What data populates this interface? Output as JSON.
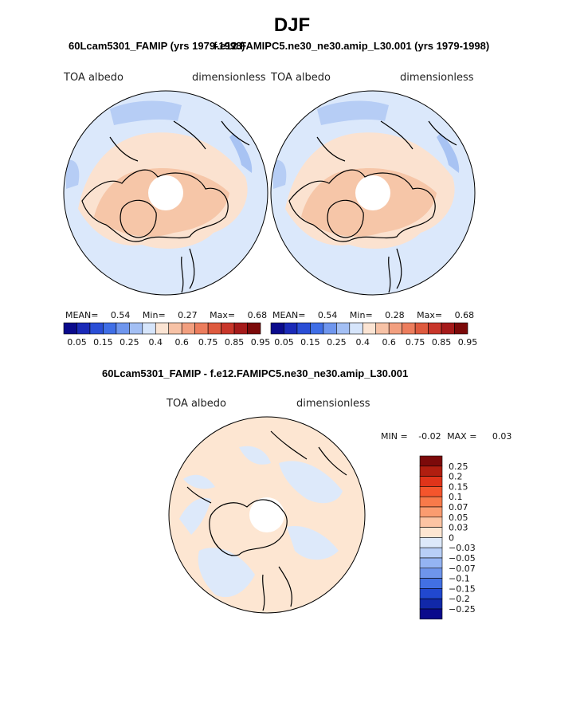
{
  "title": "DJF",
  "top_titles": {
    "left": "60Lcam5301_FAMIP (yrs 1979-1998)",
    "right": "f.e12.FAMIPC5.ne30_ne30.amip_L30.001 (yrs 1979-1998)"
  },
  "panels": [
    {
      "variable": "TOA albedo",
      "units": "dimensionless",
      "stats": {
        "mean_label": "MEAN=",
        "mean": "0.54",
        "min_label": "Min=",
        "min": "0.27",
        "max_label": "Max=",
        "max": "0.68"
      }
    },
    {
      "variable": "TOA albedo",
      "units": "dimensionless",
      "stats": {
        "mean_label": "MEAN=",
        "mean": "0.54",
        "min_label": "Min=",
        "min": "0.28",
        "max_label": "Max=",
        "max": "0.68"
      }
    }
  ],
  "abs_colorbar": {
    "colors": [
      "#0a0a8c",
      "#1a2ab8",
      "#2a4ed6",
      "#3f6ee6",
      "#6f96ee",
      "#a3bff4",
      "#d6e5fb",
      "#fbe4d3",
      "#f7c2a6",
      "#f29f7f",
      "#ec7d5d",
      "#de5a3e",
      "#c8362a",
      "#a51a1a",
      "#7c0a0a"
    ],
    "labels": [
      "0.05",
      "0.15",
      "0.25",
      "0.4",
      "0.6",
      "0.75",
      "0.85",
      "0.95"
    ]
  },
  "diff": {
    "title": "60Lcam5301_FAMIP - f.e12.FAMIPC5.ne30_ne30.amip_L30.001",
    "variable": "TOA albedo",
    "units": "dimensionless",
    "minmax": {
      "min_label": "MIN =",
      "min": "-0.02",
      "max_label": "MAX =",
      "max": "0.03"
    }
  },
  "diff_colorbar": {
    "colors": [
      "#7c0a0a",
      "#b01e10",
      "#e0341a",
      "#f5552c",
      "#f87a4a",
      "#fa9c70",
      "#fcc4a3",
      "#fde6d2",
      "#dde9fa",
      "#b8cff7",
      "#94b4f3",
      "#6e95ec",
      "#4270e3",
      "#2148cf",
      "#1128a8",
      "#0a0a8c"
    ],
    "labels": [
      "0.25",
      "0.2",
      "0.15",
      "0.1",
      "0.07",
      "0.05",
      "0.03",
      "0",
      "−0.03",
      "−0.05",
      "−0.07",
      "−0.1",
      "−0.15",
      "−0.2",
      "−0.25"
    ]
  }
}
